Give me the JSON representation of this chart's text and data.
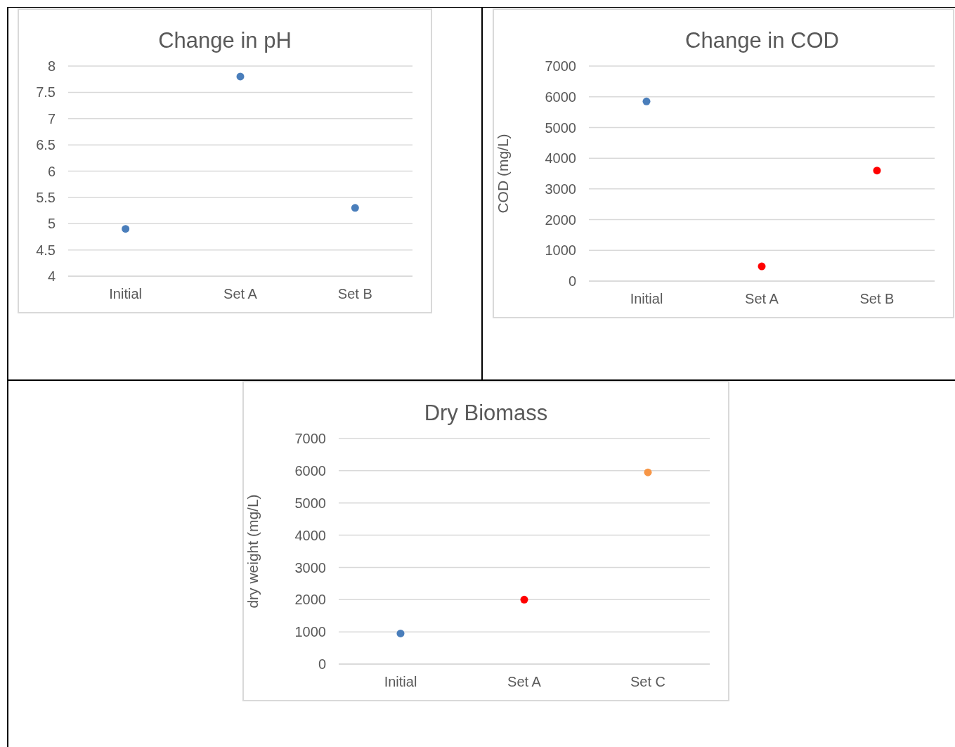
{
  "chart_data": [
    {
      "type": "scatter",
      "title": "Change in pH",
      "categories": [
        "Initial",
        "Set A",
        "Set B"
      ],
      "values": [
        4.9,
        7.8,
        5.3
      ],
      "colors": [
        "#4a7ebb",
        "#4a7ebb",
        "#4a7ebb"
      ],
      "ylim": [
        4,
        8
      ],
      "yticks": [
        4,
        4.5,
        5,
        5.5,
        6,
        6.5,
        7,
        7.5,
        8
      ],
      "grid": "y",
      "marker": "circle"
    },
    {
      "type": "scatter",
      "title": "Change in COD",
      "ylabel": "COD (mg/L)",
      "categories": [
        "Initial",
        "Set A",
        "Set B"
      ],
      "values": [
        5850,
        480,
        3600
      ],
      "colors": [
        "#4a7ebb",
        "#ff0000",
        "#ff0000"
      ],
      "ylim": [
        0,
        7000
      ],
      "yticks": [
        0,
        1000,
        2000,
        3000,
        4000,
        5000,
        6000,
        7000
      ],
      "grid": "y",
      "marker": "circle"
    },
    {
      "type": "scatter",
      "title": "Dry Biomass",
      "ylabel": "dry weight (mg/L)",
      "categories": [
        "Initial",
        "Set A",
        "Set C"
      ],
      "values": [
        950,
        2000,
        5950
      ],
      "colors": [
        "#4a7ebb",
        "#ff0000",
        "#f79646"
      ],
      "ylim": [
        0,
        7000
      ],
      "yticks": [
        0,
        1000,
        2000,
        3000,
        4000,
        5000,
        6000,
        7000
      ],
      "grid": "y",
      "marker": "circle"
    }
  ]
}
